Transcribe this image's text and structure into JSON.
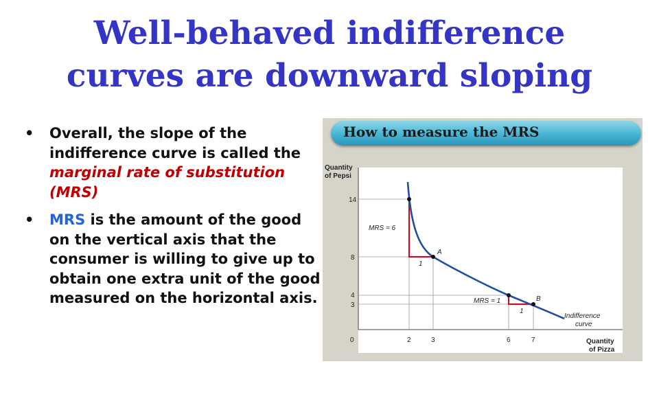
{
  "slide": {
    "title_line1": "Well-behaved indifference",
    "title_line2": "curves are downward sloping"
  },
  "bullets": [
    {
      "symbol": "•",
      "text_before": "Overall, the slope of the indifference curve is called the ",
      "highlight": "marginal rate of substitution (MRS)",
      "highlight_color": "#c00000"
    },
    {
      "symbol": "•",
      "highlight": "MRS",
      "highlight_color": "#2563d8",
      "text_after": " is the amount of the good on the vertical axis that the consumer is willing to give up to obtain one extra unit of the good measured on the horizontal axis."
    }
  ],
  "figure": {
    "banner_title": "How to measure the MRS",
    "y_axis_label_line1": "Quantity",
    "y_axis_label_line2": "of Pepsi",
    "x_axis_label_line1": "Quantity",
    "x_axis_label_line2": "of Pizza",
    "origin_label": "0",
    "curve_label_line1": "Indifference",
    "curve_label_line2": "curve",
    "curve_color": "#1f4fa0",
    "triangle_color": "#c0102a"
  },
  "chart_data": {
    "type": "line",
    "x_ticks": [
      2,
      3,
      6,
      7
    ],
    "y_ticks": [
      3,
      4,
      8,
      14
    ],
    "points": [
      {
        "x": 2,
        "y": 14
      },
      {
        "x": 3,
        "y": 8,
        "label": "A"
      },
      {
        "x": 6,
        "y": 4
      },
      {
        "x": 7,
        "y": 3,
        "label": "B"
      }
    ],
    "annotations": [
      {
        "label": "MRS = 6",
        "run_label": "1"
      },
      {
        "label": "MRS = 1",
        "run_label": "1"
      }
    ]
  }
}
